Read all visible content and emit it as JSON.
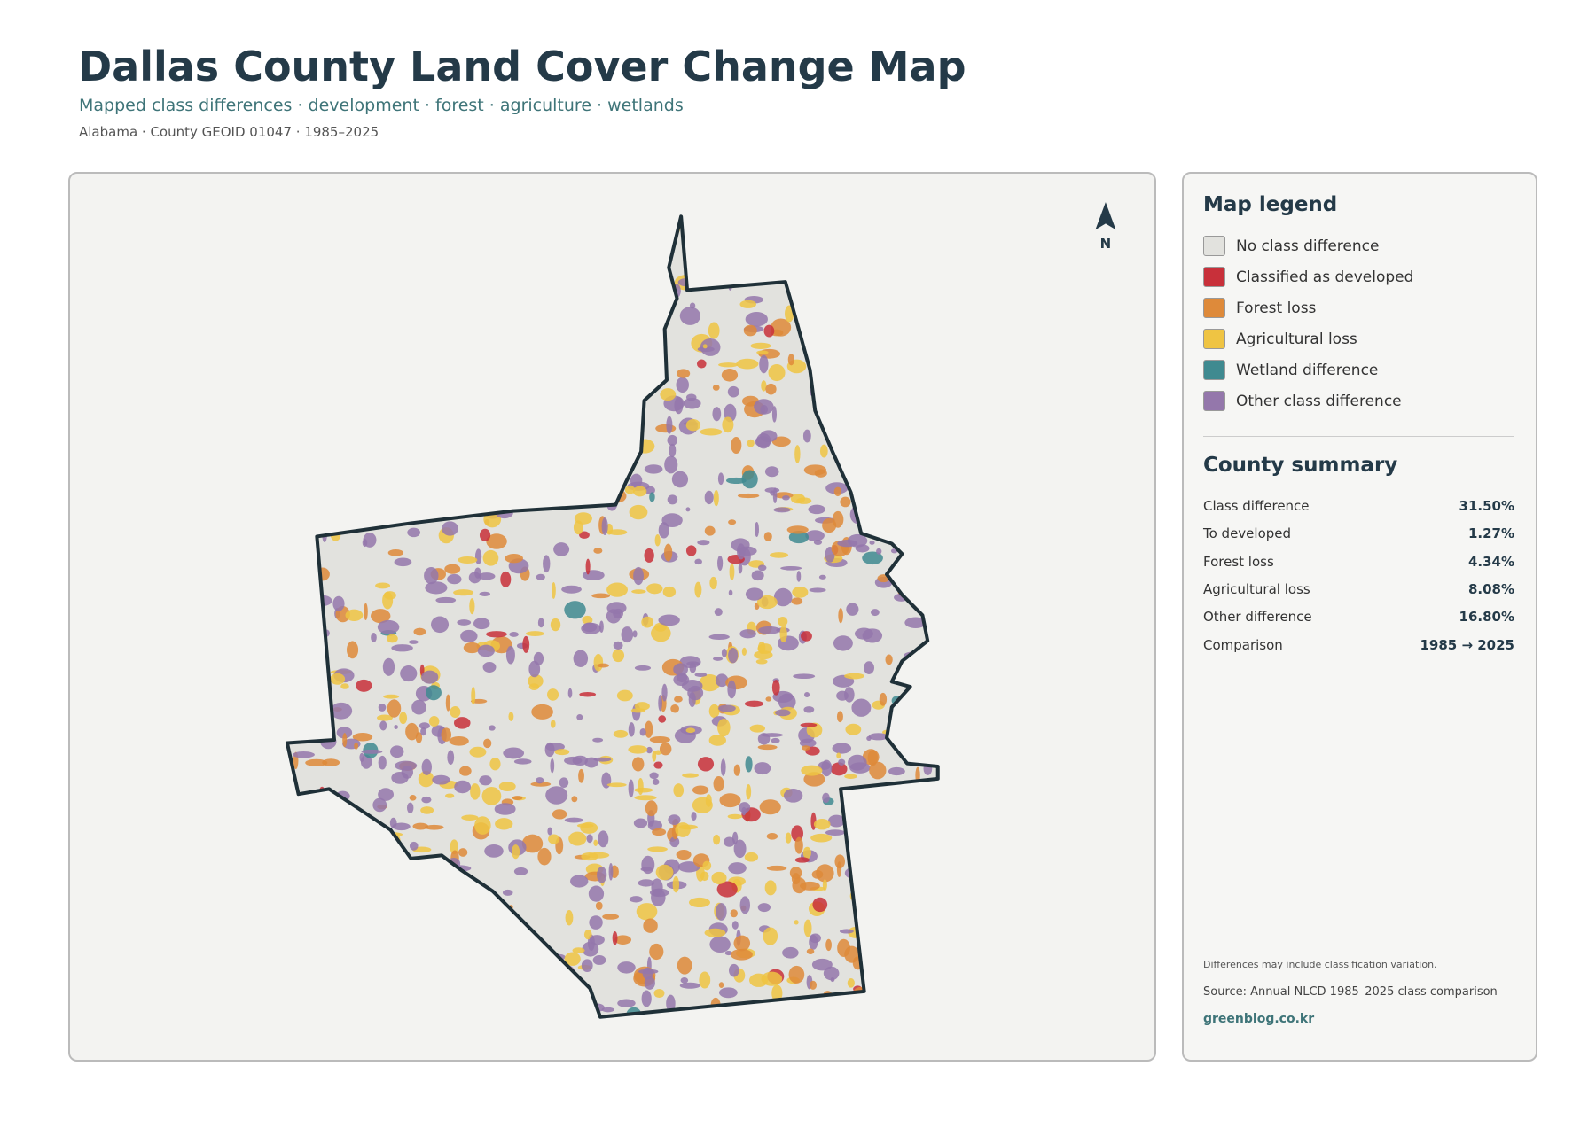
{
  "header": {
    "title": "Dallas County Land Cover Change Map",
    "subtitle": "Mapped class differences · development · forest · agriculture · wetlands",
    "meta": "Alabama · County GEOID 01047 · 1985–2025"
  },
  "map": {
    "north": "N"
  },
  "legend": {
    "title": "Map legend",
    "items": [
      {
        "label": "No class difference",
        "color": "#e2e2de"
      },
      {
        "label": "Classified as developed",
        "color": "#c8303a"
      },
      {
        "label": "Forest loss",
        "color": "#de8a3a"
      },
      {
        "label": "Agricultural loss",
        "color": "#efc443"
      },
      {
        "label": "Wetland difference",
        "color": "#3f8a90"
      },
      {
        "label": "Other class difference",
        "color": "#9477ab"
      }
    ]
  },
  "summary": {
    "title": "County summary",
    "rows": [
      [
        "Class difference",
        "31.50%"
      ],
      [
        "To developed",
        "1.27%"
      ],
      [
        "Forest loss",
        "4.34%"
      ],
      [
        "Agricultural loss",
        "8.08%"
      ],
      [
        "Other difference",
        "16.80%"
      ],
      [
        "Comparison",
        "1985 → 2025"
      ]
    ]
  },
  "footer": {
    "note": "Differences may include classification variation.",
    "source": "Source: Annual NLCD 1985–2025 class comparison",
    "link": "greenblog.co.kr"
  }
}
